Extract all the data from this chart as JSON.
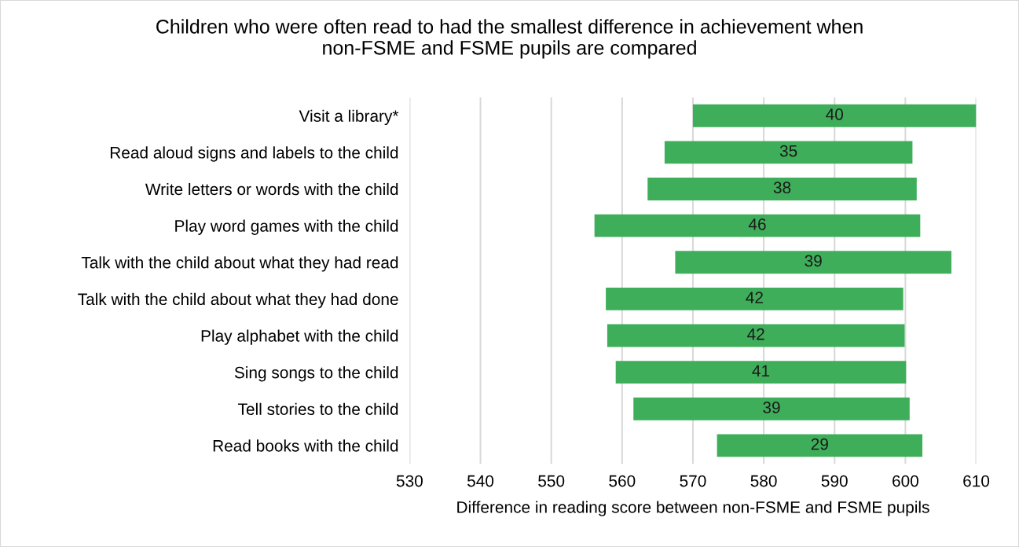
{
  "chart_data": {
    "type": "bar",
    "orientation": "horizontal",
    "title": "Children who were often read to had the smallest difference in achievement when\nnon-FSME and FSME pupils are compared",
    "xlabel": "Difference in reading score between non-FSME and FSME pupils",
    "categories": [
      "Visit a library*",
      "Read aloud signs and labels to the child",
      "Write letters or words with the child",
      "Play word games with the child",
      "Talk with the child about what they had read",
      "Talk with the child about what they had done",
      "Play alphabet with the child",
      "Sing songs to the child",
      "Tell stories to the child",
      "Read books with the child"
    ],
    "values": [
      40,
      35,
      38,
      46,
      39,
      42,
      42,
      41,
      39,
      29
    ],
    "base": [
      570,
      566,
      563.6,
      556.1,
      567.5,
      557.7,
      557.9,
      559.1,
      561.6,
      573.4
    ],
    "color": "#3fae5a",
    "xlim": [
      530,
      610
    ],
    "xticks": [
      530,
      540,
      550,
      560,
      570,
      580,
      590,
      600,
      610
    ],
    "grid": "x",
    "data_labels": true
  }
}
